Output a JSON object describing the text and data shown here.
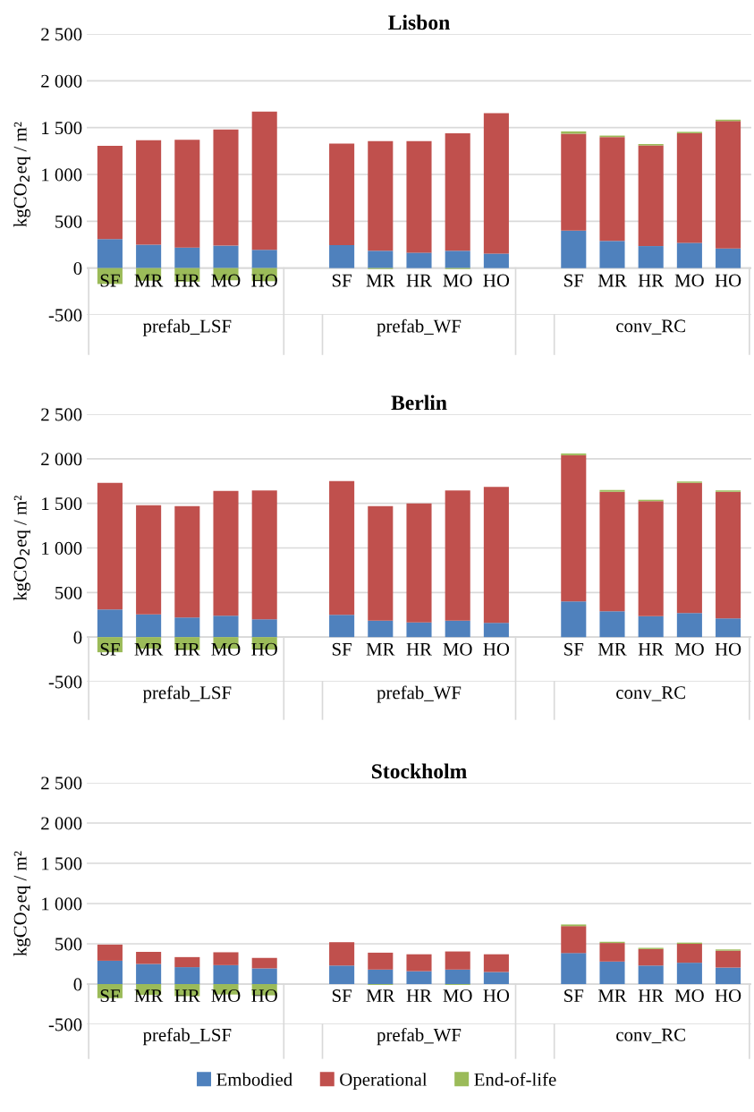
{
  "chart_data": [
    {
      "type": "bar",
      "stacked": true,
      "title": "Lisbon",
      "ylabel": "kgCO$_{2}$eq / m²",
      "grid": "y",
      "legend": "bottom",
      "categories": [
        "SF",
        "MR",
        "HR",
        "MO",
        "HO",
        null,
        "SF",
        "MR",
        "HR",
        "MO",
        "HO",
        null,
        "SF",
        "MR",
        "HR",
        "MO",
        "HO"
      ],
      "annotations": [
        "prefab_LSF",
        "prefab_WF",
        "conv_RC"
      ],
      "ylim": [
        -500,
        2500
      ],
      "yticks": [
        {
          "value": -500,
          "label": "-500"
        },
        0,
        500,
        {
          "value": 1000,
          "label": "1 000"
        },
        {
          "value": 1500,
          "label": "1 500"
        },
        {
          "value": 2000,
          "label": "2 000"
        },
        {
          "value": 2500,
          "label": "2 500"
        }
      ],
      "series": [
        {
          "name": "Embodied",
          "color": "#4f81bd",
          "values": [
            310,
            250,
            220,
            240,
            195,
            null,
            245,
            185,
            165,
            185,
            155,
            null,
            400,
            290,
            235,
            270,
            210
          ]
        },
        {
          "name": "Operational",
          "color": "#c0504d",
          "values": [
            995,
            1115,
            1150,
            1240,
            1475,
            null,
            1085,
            1170,
            1190,
            1255,
            1500,
            null,
            1035,
            1110,
            1075,
            1170,
            1360
          ]
        },
        {
          "name": "End-of-life",
          "color": "#9bbb59",
          "values": [
            -170,
            -135,
            -145,
            -130,
            -140,
            null,
            null,
            -10,
            null,
            -10,
            null,
            null,
            25,
            15,
            15,
            15,
            15
          ]
        }
      ]
    },
    {
      "type": "bar",
      "stacked": true,
      "title": "Berlin",
      "ylabel": "kgCO$_{2}$eq / m²",
      "grid": "y",
      "legend": "bottom",
      "categories": [
        "SF",
        "MR",
        "HR",
        "MO",
        "HO",
        null,
        "SF",
        "MR",
        "HR",
        "MO",
        "HO",
        null,
        "SF",
        "MR",
        "HR",
        "MO",
        "HO"
      ],
      "annotations": [
        "prefab_LSF",
        "prefab_WF",
        "conv_RC"
      ],
      "ylim": [
        -500,
        2500
      ],
      "yticks": [
        {
          "value": -500,
          "label": "-500"
        },
        0,
        500,
        {
          "value": 1000,
          "label": "1 000"
        },
        {
          "value": 1500,
          "label": "1 500"
        },
        {
          "value": 2000,
          "label": "2 000"
        },
        {
          "value": 2500,
          "label": "2 500"
        }
      ],
      "series": [
        {
          "name": "Embodied",
          "color": "#4f81bd",
          "values": [
            310,
            255,
            220,
            240,
            200,
            null,
            250,
            185,
            165,
            185,
            160,
            null,
            400,
            290,
            235,
            270,
            210
          ]
        },
        {
          "name": "Operational",
          "color": "#c0504d",
          "values": [
            1420,
            1225,
            1250,
            1400,
            1445,
            null,
            1500,
            1285,
            1335,
            1460,
            1525,
            null,
            1640,
            1340,
            1290,
            1460,
            1420
          ]
        },
        {
          "name": "End-of-life",
          "color": "#9bbb59",
          "values": [
            -170,
            -130,
            -145,
            -130,
            -140,
            null,
            null,
            null,
            null,
            null,
            null,
            null,
            20,
            20,
            15,
            15,
            15
          ]
        }
      ]
    },
    {
      "type": "bar",
      "stacked": true,
      "title": "Stockholm",
      "ylabel": "kgCO$_{2}$eq / m²",
      "grid": "y",
      "legend": "bottom",
      "categories": [
        "SF",
        "MR",
        "HR",
        "MO",
        "HO",
        null,
        "SF",
        "MR",
        "HR",
        "MO",
        "HO",
        null,
        "SF",
        "MR",
        "HR",
        "MO",
        "HO"
      ],
      "annotations": [
        "prefab_LSF",
        "prefab_WF",
        "conv_RC"
      ],
      "ylim": [
        -500,
        2500
      ],
      "yticks": [
        {
          "value": -500,
          "label": "-500"
        },
        0,
        500,
        {
          "value": 1000,
          "label": "1 000"
        },
        {
          "value": 1500,
          "label": "1 500"
        },
        {
          "value": 2000,
          "label": "2 000"
        },
        {
          "value": 2500,
          "label": "2 500"
        }
      ],
      "series": [
        {
          "name": "Embodied",
          "color": "#4f81bd",
          "values": [
            290,
            250,
            210,
            235,
            195,
            null,
            230,
            180,
            160,
            180,
            150,
            null,
            385,
            280,
            230,
            265,
            205
          ]
        },
        {
          "name": "Operational",
          "color": "#c0504d",
          "values": [
            200,
            150,
            125,
            160,
            130,
            null,
            290,
            210,
            210,
            225,
            220,
            null,
            335,
            230,
            205,
            235,
            210
          ]
        },
        {
          "name": "End-of-life",
          "color": "#9bbb59",
          "values": [
            -175,
            -135,
            -150,
            -130,
            -140,
            null,
            null,
            -10,
            null,
            -10,
            null,
            null,
            20,
            15,
            15,
            15,
            15
          ]
        }
      ]
    }
  ]
}
